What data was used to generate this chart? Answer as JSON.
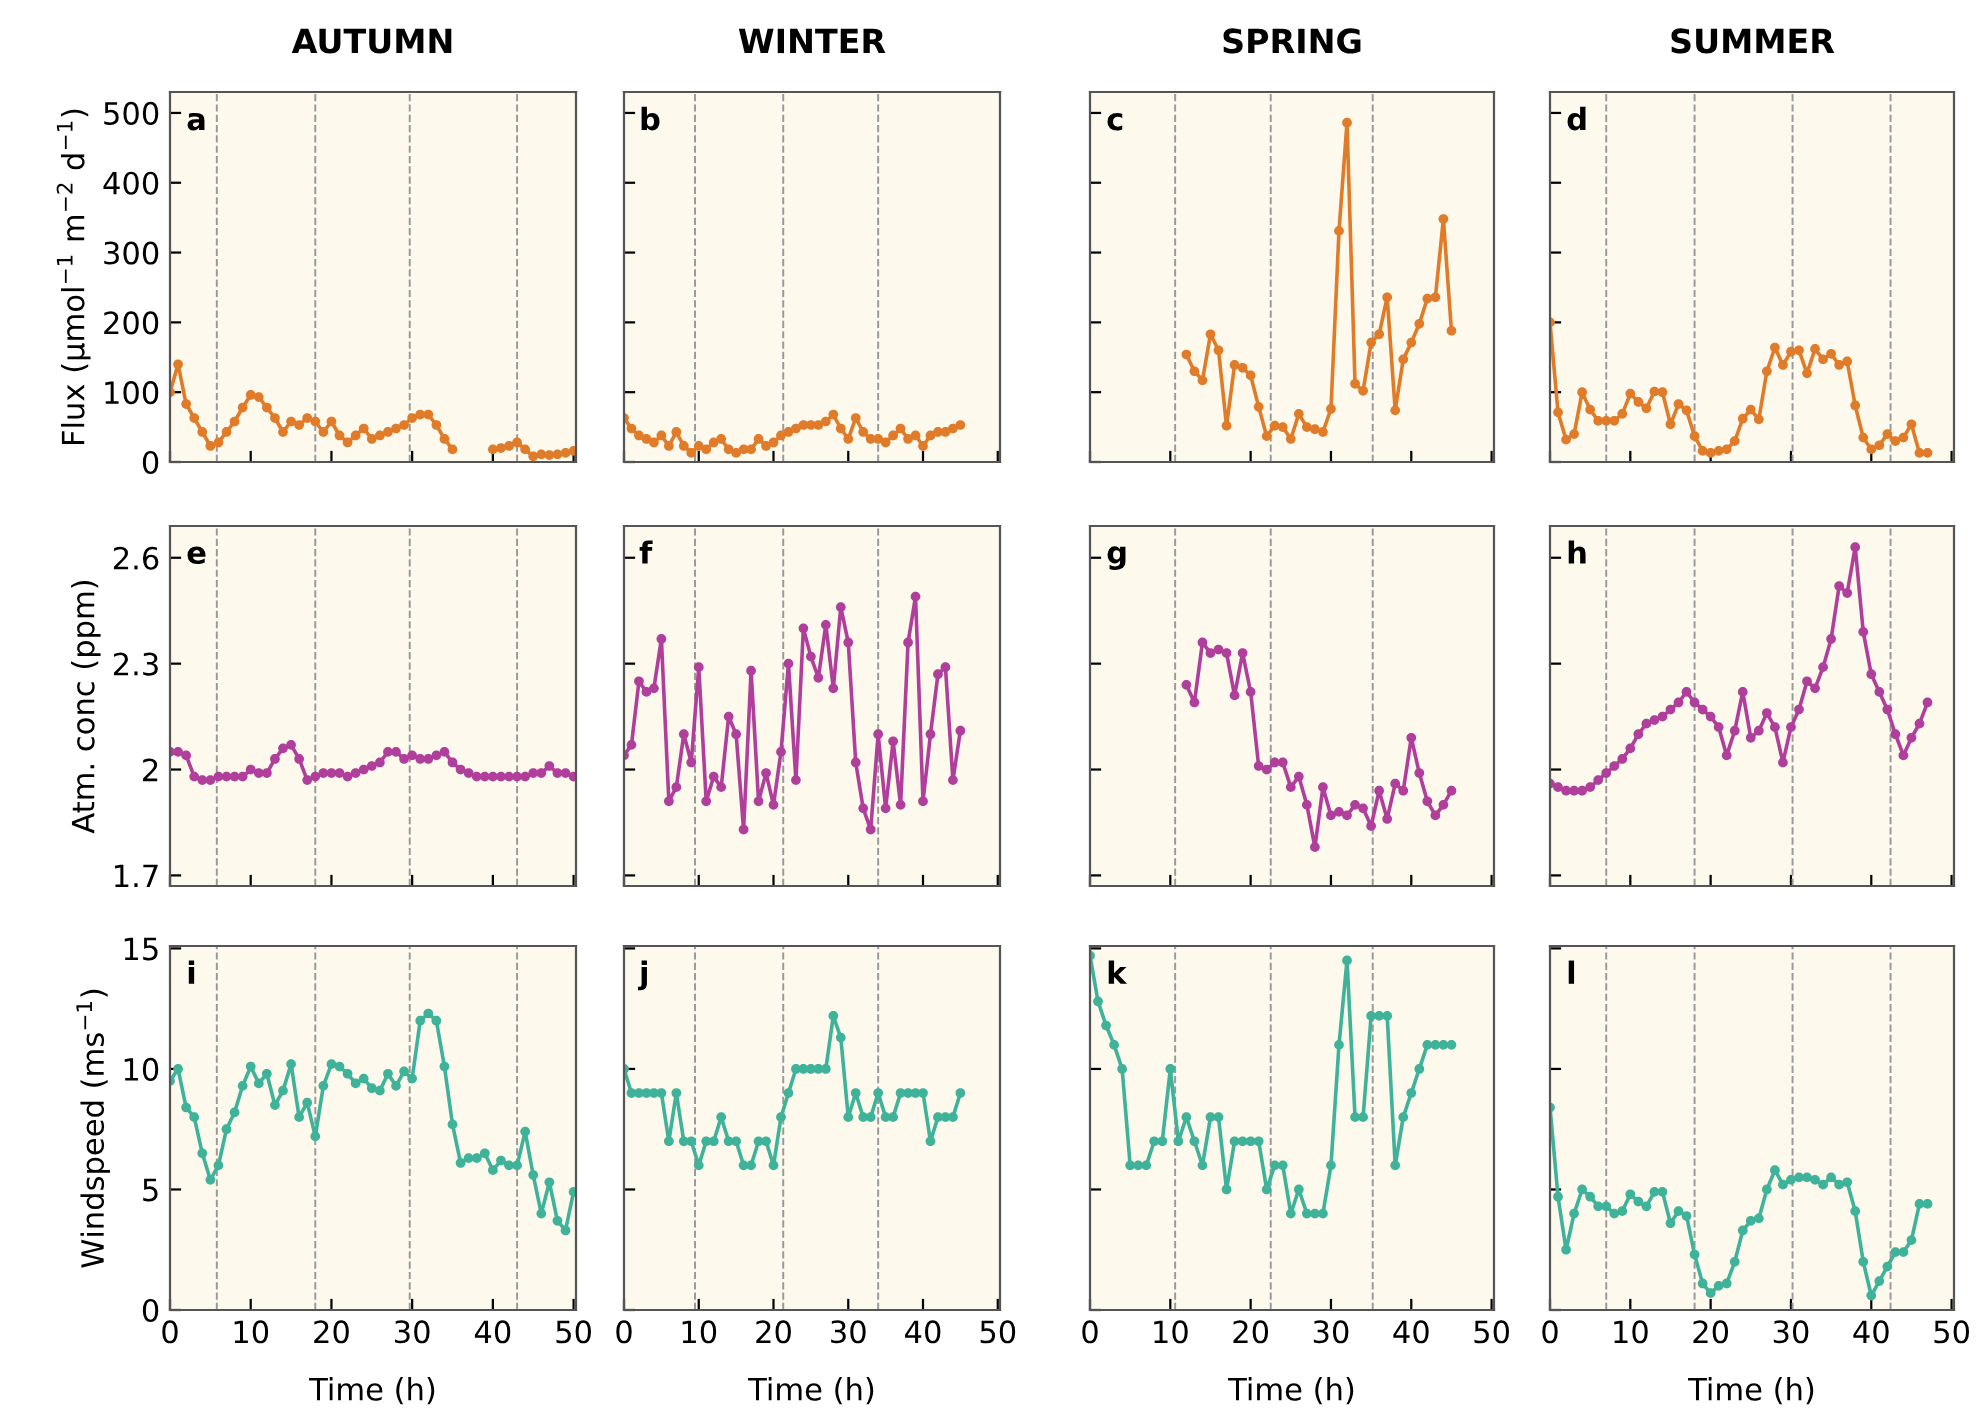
{
  "chart_data": [
    {
      "type": "line",
      "title": "AUTUMN",
      "ylabel": "Flux (µmol$^{−1}$ m$^{−2}$ d$^{−1}$)",
      "annotations": [
        "a"
      ],
      "color": "#e07b2a",
      "marker": "circle",
      "line_style": "solid",
      "tick_labels": "y",
      "xlim": [
        0,
        50.3
      ],
      "ylim": [
        0,
        530
      ],
      "xticks": [
        0,
        10,
        20,
        30,
        40,
        50
      ],
      "yticks": [
        0,
        100,
        200,
        300,
        400,
        500
      ],
      "ref_lines": [
        {
          "axis": "x",
          "value": 5.8,
          "color": "#999999",
          "line_style": "dashed"
        },
        {
          "axis": "x",
          "value": 18,
          "color": "#999999",
          "line_style": "dashed"
        },
        {
          "axis": "x",
          "value": 29.7,
          "color": "#999999",
          "line_style": "dashed"
        },
        {
          "axis": "x",
          "value": 43,
          "color": "#999999",
          "line_style": "dashed"
        }
      ],
      "x": [
        0,
        1,
        2,
        3,
        4,
        5,
        6,
        7,
        8,
        9,
        10,
        11,
        12,
        13,
        14,
        15,
        16,
        17,
        18,
        19,
        20,
        21,
        22,
        23,
        24,
        25,
        26,
        27,
        28,
        29,
        30,
        31,
        32,
        33,
        34,
        35,
        36,
        37,
        38,
        39,
        40,
        41,
        42,
        43,
        44,
        45,
        46,
        47,
        48,
        49,
        50
      ],
      "values": [
        100,
        140,
        83,
        63,
        43,
        23,
        28,
        43,
        58,
        78,
        96,
        93,
        78,
        63,
        43,
        58,
        53,
        63,
        58,
        43,
        58,
        38,
        28,
        38,
        48,
        33,
        38,
        43,
        48,
        53,
        63,
        68,
        68,
        53,
        33,
        18,
        null,
        null,
        null,
        null,
        18,
        20,
        23,
        28,
        18,
        8,
        11,
        10,
        11,
        13,
        16
      ]
    },
    {
      "type": "line",
      "title": "WINTER",
      "annotations": [
        "b"
      ],
      "color": "#e07b2a",
      "marker": "circle",
      "line_style": "solid",
      "tick_labels": false,
      "xlim": [
        0,
        50.3
      ],
      "ylim": [
        0,
        530
      ],
      "xticks": [
        0,
        10,
        20,
        30,
        40,
        50
      ],
      "yticks": [
        0,
        100,
        200,
        300,
        400,
        500
      ],
      "ref_lines": [
        {
          "axis": "x",
          "value": 9.5,
          "color": "#999999",
          "line_style": "dashed"
        },
        {
          "axis": "x",
          "value": 21.3,
          "color": "#999999",
          "line_style": "dashed"
        },
        {
          "axis": "x",
          "value": 34,
          "color": "#999999",
          "line_style": "dashed"
        }
      ],
      "x": [
        0,
        1,
        2,
        3,
        4,
        5,
        6,
        7,
        8,
        9,
        10,
        11,
        12,
        13,
        14,
        15,
        16,
        17,
        18,
        19,
        20,
        21,
        22,
        23,
        24,
        25,
        26,
        27,
        28,
        29,
        30,
        31,
        32,
        33,
        34,
        35,
        36,
        37,
        38,
        39,
        40,
        41,
        42,
        43,
        44,
        45
      ],
      "values": [
        63,
        48,
        38,
        33,
        28,
        38,
        23,
        43,
        23,
        13,
        23,
        18,
        28,
        33,
        18,
        13,
        18,
        18,
        33,
        23,
        28,
        38,
        43,
        48,
        53,
        53,
        53,
        58,
        68,
        48,
        33,
        63,
        43,
        33,
        33,
        28,
        38,
        48,
        33,
        38,
        23,
        38,
        43,
        43,
        48,
        53
      ]
    },
    {
      "type": "line",
      "title": "SPRING",
      "annotations": [
        "c"
      ],
      "color": "#e07b2a",
      "marker": "circle",
      "line_style": "solid",
      "tick_labels": false,
      "xlim": [
        0,
        50.3
      ],
      "ylim": [
        0,
        530
      ],
      "xticks": [
        0,
        10,
        20,
        30,
        40,
        50
      ],
      "yticks": [
        0,
        100,
        200,
        300,
        400,
        500
      ],
      "ref_lines": [
        {
          "axis": "x",
          "value": 10.6,
          "color": "#999999",
          "line_style": "dashed"
        },
        {
          "axis": "x",
          "value": 22.5,
          "color": "#999999",
          "line_style": "dashed"
        },
        {
          "axis": "x",
          "value": 35.2,
          "color": "#999999",
          "line_style": "dashed"
        }
      ],
      "x": [
        12,
        13,
        14,
        15,
        16,
        17,
        18,
        19,
        20,
        21,
        22,
        23,
        24,
        25,
        26,
        27,
        28,
        29,
        30,
        31,
        32,
        33,
        34,
        35,
        36,
        37,
        38,
        39,
        40,
        41,
        42,
        43,
        44,
        45
      ],
      "values": [
        154,
        130,
        117,
        183,
        160,
        52,
        139,
        135,
        124,
        79,
        37,
        52,
        50,
        33,
        69,
        50,
        47,
        43,
        76,
        331,
        486,
        112,
        102,
        171,
        183,
        236,
        74,
        147,
        171,
        198,
        234,
        236,
        348,
        188
      ]
    },
    {
      "type": "line",
      "title": "SUMMER",
      "annotations": [
        "d"
      ],
      "color": "#e07b2a",
      "marker": "circle",
      "line_style": "solid",
      "tick_labels": false,
      "xlim": [
        0,
        50.3
      ],
      "ylim": [
        0,
        530
      ],
      "xticks": [
        0,
        10,
        20,
        30,
        40,
        50
      ],
      "yticks": [
        0,
        100,
        200,
        300,
        400,
        500
      ],
      "ref_lines": [
        {
          "axis": "x",
          "value": 7,
          "color": "#999999",
          "line_style": "dashed"
        },
        {
          "axis": "x",
          "value": 18,
          "color": "#999999",
          "line_style": "dashed"
        },
        {
          "axis": "x",
          "value": 30.2,
          "color": "#999999",
          "line_style": "dashed"
        },
        {
          "axis": "x",
          "value": 42.4,
          "color": "#999999",
          "line_style": "dashed"
        }
      ],
      "x": [
        0,
        1,
        2,
        3,
        4,
        5,
        6,
        7,
        8,
        9,
        10,
        11,
        12,
        13,
        14,
        15,
        16,
        17,
        18,
        19,
        20,
        21,
        22,
        23,
        24,
        25,
        26,
        27,
        28,
        29,
        30,
        31,
        32,
        33,
        34,
        35,
        36,
        37,
        38,
        39,
        40,
        41,
        42,
        43,
        44,
        45,
        46,
        47
      ],
      "values": [
        200,
        71,
        32,
        40,
        100,
        75,
        59,
        59,
        59,
        69,
        98,
        86,
        77,
        101,
        100,
        54,
        83,
        74,
        37,
        16,
        13,
        16,
        18,
        30,
        62,
        75,
        61,
        130,
        164,
        139,
        158,
        160,
        127,
        162,
        147,
        155,
        139,
        144,
        81,
        35,
        18,
        24,
        40,
        30,
        35,
        54,
        13,
        13
      ]
    },
    {
      "type": "line",
      "ylabel": "Atm. conc (ppm)",
      "annotations": [
        "e"
      ],
      "color": "#b03f9c",
      "marker": "circle",
      "line_style": "solid",
      "tick_labels": "y",
      "xlim": [
        0,
        50.3
      ],
      "ylim": [
        1.67,
        2.69
      ],
      "xticks": [
        0,
        10,
        20,
        30,
        40,
        50
      ],
      "yticks": [
        1.7,
        2,
        2.3,
        2.6
      ],
      "ref_lines": [
        {
          "axis": "x",
          "value": 5.8,
          "color": "#999999",
          "line_style": "dashed"
        },
        {
          "axis": "x",
          "value": 18,
          "color": "#999999",
          "line_style": "dashed"
        },
        {
          "axis": "x",
          "value": 29.7,
          "color": "#999999",
          "line_style": "dashed"
        },
        {
          "axis": "x",
          "value": 43,
          "color": "#999999",
          "line_style": "dashed"
        }
      ],
      "x": [
        0,
        1,
        2,
        3,
        4,
        5,
        6,
        7,
        8,
        9,
        10,
        11,
        12,
        13,
        14,
        15,
        16,
        17,
        18,
        19,
        20,
        21,
        22,
        23,
        24,
        25,
        26,
        27,
        28,
        29,
        30,
        31,
        32,
        33,
        34,
        35,
        36,
        37,
        38,
        39,
        40,
        41,
        42,
        43,
        44,
        45,
        46,
        47,
        48,
        49,
        50
      ],
      "values": [
        2.05,
        2.05,
        2.04,
        1.98,
        1.97,
        1.97,
        1.98,
        1.98,
        1.98,
        1.98,
        2.0,
        1.99,
        1.99,
        2.03,
        2.06,
        2.07,
        2.03,
        1.97,
        1.98,
        1.99,
        1.99,
        1.99,
        1.98,
        1.99,
        2.0,
        2.01,
        2.02,
        2.05,
        2.05,
        2.03,
        2.04,
        2.03,
        2.03,
        2.04,
        2.05,
        2.02,
        2.0,
        1.99,
        1.98,
        1.98,
        1.98,
        1.98,
        1.98,
        1.98,
        1.98,
        1.99,
        1.99,
        2.01,
        1.99,
        1.99,
        1.98
      ]
    },
    {
      "type": "line",
      "annotations": [
        "f"
      ],
      "color": "#b03f9c",
      "marker": "circle",
      "line_style": "solid",
      "tick_labels": false,
      "xlim": [
        0,
        50.3
      ],
      "ylim": [
        1.67,
        2.69
      ],
      "xticks": [
        0,
        10,
        20,
        30,
        40,
        50
      ],
      "yticks": [
        1.7,
        2,
        2.3,
        2.6
      ],
      "ref_lines": [
        {
          "axis": "x",
          "value": 9.5,
          "color": "#999999",
          "line_style": "dashed"
        },
        {
          "axis": "x",
          "value": 21.3,
          "color": "#999999",
          "line_style": "dashed"
        },
        {
          "axis": "x",
          "value": 34,
          "color": "#999999",
          "line_style": "dashed"
        }
      ],
      "x": [
        0,
        1,
        2,
        3,
        4,
        5,
        6,
        7,
        8,
        9,
        10,
        11,
        12,
        13,
        14,
        15,
        16,
        17,
        18,
        19,
        20,
        21,
        22,
        23,
        24,
        25,
        26,
        27,
        28,
        29,
        30,
        31,
        32,
        33,
        34,
        35,
        36,
        37,
        38,
        39,
        40,
        41,
        42,
        43,
        44,
        45
      ],
      "values": [
        2.04,
        2.07,
        2.25,
        2.22,
        2.23,
        2.37,
        1.91,
        1.95,
        2.1,
        2.02,
        2.29,
        1.91,
        1.98,
        1.95,
        2.15,
        2.1,
        1.83,
        2.28,
        1.91,
        1.99,
        1.9,
        2.05,
        2.3,
        1.97,
        2.4,
        2.32,
        2.26,
        2.41,
        2.23,
        2.46,
        2.36,
        2.02,
        1.89,
        1.83,
        2.1,
        1.89,
        2.08,
        1.9,
        2.36,
        2.49,
        1.91,
        2.1,
        2.27,
        2.29,
        1.97,
        2.11
      ]
    },
    {
      "type": "line",
      "annotations": [
        "g"
      ],
      "color": "#b03f9c",
      "marker": "circle",
      "line_style": "solid",
      "tick_labels": false,
      "xlim": [
        0,
        50.3
      ],
      "ylim": [
        1.67,
        2.69
      ],
      "xticks": [
        0,
        10,
        20,
        30,
        40,
        50
      ],
      "yticks": [
        1.7,
        2,
        2.3,
        2.6
      ],
      "ref_lines": [
        {
          "axis": "x",
          "value": 10.6,
          "color": "#999999",
          "line_style": "dashed"
        },
        {
          "axis": "x",
          "value": 22.5,
          "color": "#999999",
          "line_style": "dashed"
        },
        {
          "axis": "x",
          "value": 35.2,
          "color": "#999999",
          "line_style": "dashed"
        }
      ],
      "x": [
        12,
        13,
        14,
        15,
        16,
        17,
        18,
        19,
        20,
        21,
        22,
        23,
        24,
        25,
        26,
        27,
        28,
        29,
        30,
        31,
        32,
        33,
        34,
        35,
        36,
        37,
        38,
        39,
        40,
        41,
        42,
        43,
        44,
        45
      ],
      "values": [
        2.24,
        2.19,
        2.36,
        2.33,
        2.34,
        2.33,
        2.21,
        2.33,
        2.22,
        2.01,
        2.0,
        2.02,
        2.02,
        1.95,
        1.98,
        1.9,
        1.78,
        1.95,
        1.87,
        1.88,
        1.87,
        1.9,
        1.89,
        1.84,
        1.94,
        1.86,
        1.96,
        1.94,
        2.09,
        1.99,
        1.91,
        1.87,
        1.9,
        1.94
      ]
    },
    {
      "type": "line",
      "annotations": [
        "h"
      ],
      "color": "#b03f9c",
      "marker": "circle",
      "line_style": "solid",
      "tick_labels": false,
      "xlim": [
        0,
        50.3
      ],
      "ylim": [
        1.67,
        2.69
      ],
      "xticks": [
        0,
        10,
        20,
        30,
        40,
        50
      ],
      "yticks": [
        1.7,
        2,
        2.3,
        2.6
      ],
      "ref_lines": [
        {
          "axis": "x",
          "value": 7,
          "color": "#999999",
          "line_style": "dashed"
        },
        {
          "axis": "x",
          "value": 18,
          "color": "#999999",
          "line_style": "dashed"
        },
        {
          "axis": "x",
          "value": 30.2,
          "color": "#999999",
          "line_style": "dashed"
        },
        {
          "axis": "x",
          "value": 42.4,
          "color": "#999999",
          "line_style": "dashed"
        }
      ],
      "x": [
        0,
        1,
        2,
        3,
        4,
        5,
        6,
        7,
        8,
        9,
        10,
        11,
        12,
        13,
        14,
        15,
        16,
        17,
        18,
        19,
        20,
        21,
        22,
        23,
        24,
        25,
        26,
        27,
        28,
        29,
        30,
        31,
        32,
        33,
        34,
        35,
        36,
        37,
        38,
        39,
        40,
        41,
        42,
        43,
        44,
        45,
        46,
        47
      ],
      "values": [
        1.96,
        1.95,
        1.94,
        1.94,
        1.94,
        1.95,
        1.97,
        1.99,
        2.01,
        2.03,
        2.06,
        2.1,
        2.13,
        2.14,
        2.15,
        2.17,
        2.19,
        2.22,
        2.19,
        2.17,
        2.15,
        2.12,
        2.04,
        2.11,
        2.22,
        2.09,
        2.11,
        2.16,
        2.12,
        2.02,
        2.12,
        2.17,
        2.25,
        2.23,
        2.29,
        2.37,
        2.52,
        2.5,
        2.63,
        2.39,
        2.27,
        2.22,
        2.17,
        2.1,
        2.04,
        2.09,
        2.13,
        2.19
      ]
    },
    {
      "type": "line",
      "ylabel": "Windspeed (ms$^{−1}$)",
      "xlabel": "Time (h)",
      "annotations": [
        "i"
      ],
      "color": "#3fb39a",
      "marker": "circle",
      "line_style": "solid",
      "xlim": [
        0,
        50.3
      ],
      "ylim": [
        0,
        15.1
      ],
      "xticks": [
        0,
        10,
        20,
        30,
        40,
        50
      ],
      "yticks": [
        0,
        5,
        10,
        15
      ],
      "ref_lines": [
        {
          "axis": "x",
          "value": 5.8,
          "color": "#999999",
          "line_style": "dashed"
        },
        {
          "axis": "x",
          "value": 18,
          "color": "#999999",
          "line_style": "dashed"
        },
        {
          "axis": "x",
          "value": 29.7,
          "color": "#999999",
          "line_style": "dashed"
        },
        {
          "axis": "x",
          "value": 43,
          "color": "#999999",
          "line_style": "dashed"
        }
      ],
      "x": [
        0,
        1,
        2,
        3,
        4,
        5,
        6,
        7,
        8,
        9,
        10,
        11,
        12,
        13,
        14,
        15,
        16,
        17,
        18,
        19,
        20,
        21,
        22,
        23,
        24,
        25,
        26,
        27,
        28,
        29,
        30,
        31,
        32,
        33,
        34,
        35,
        36,
        37,
        38,
        39,
        40,
        41,
        42,
        43,
        44,
        45,
        46,
        47,
        48,
        49,
        50
      ],
      "values": [
        9.5,
        10,
        8.4,
        8.0,
        6.5,
        5.4,
        6.0,
        7.5,
        8.2,
        9.3,
        10.1,
        9.4,
        9.8,
        8.5,
        9.1,
        10.2,
        8.0,
        8.6,
        7.2,
        9.3,
        10.2,
        10.1,
        9.8,
        9.4,
        9.6,
        9.2,
        9.1,
        9.8,
        9.3,
        9.9,
        9.6,
        12.0,
        12.3,
        12.0,
        10.1,
        7.7,
        6.1,
        6.3,
        6.3,
        6.5,
        5.8,
        6.2,
        6.0,
        6.0,
        7.4,
        5.6,
        4.0,
        5.3,
        3.7,
        3.3,
        4.9
      ]
    },
    {
      "type": "line",
      "xlabel": "Time (h)",
      "annotations": [
        "j"
      ],
      "color": "#3fb39a",
      "marker": "circle",
      "line_style": "solid",
      "tick_labels": "x",
      "xlim": [
        0,
        50.3
      ],
      "ylim": [
        0,
        15.1
      ],
      "xticks": [
        0,
        10,
        20,
        30,
        40,
        50
      ],
      "yticks": [
        0,
        5,
        10,
        15
      ],
      "ref_lines": [
        {
          "axis": "x",
          "value": 9.5,
          "color": "#999999",
          "line_style": "dashed"
        },
        {
          "axis": "x",
          "value": 21.3,
          "color": "#999999",
          "line_style": "dashed"
        },
        {
          "axis": "x",
          "value": 34,
          "color": "#999999",
          "line_style": "dashed"
        }
      ],
      "x": [
        0,
        1,
        2,
        3,
        4,
        5,
        6,
        7,
        8,
        9,
        10,
        11,
        12,
        13,
        14,
        15,
        16,
        17,
        18,
        19,
        20,
        21,
        22,
        23,
        24,
        25,
        26,
        27,
        28,
        29,
        30,
        31,
        32,
        33,
        34,
        35,
        36,
        37,
        38,
        39,
        40,
        41,
        42,
        43,
        44,
        45
      ],
      "values": [
        10,
        9,
        9,
        9,
        9,
        9,
        7,
        9,
        7,
        7,
        6,
        7,
        7,
        8,
        7,
        7,
        6,
        6,
        7,
        7,
        6,
        8,
        9,
        10,
        10,
        10,
        10,
        10,
        12.2,
        11.3,
        8,
        9,
        8,
        8,
        9,
        8,
        8,
        9,
        9,
        9,
        9,
        7,
        8,
        8,
        8,
        9
      ]
    },
    {
      "type": "line",
      "xlabel": "Time (h)",
      "annotations": [
        "k"
      ],
      "color": "#3fb39a",
      "marker": "circle",
      "line_style": "solid",
      "tick_labels": "x",
      "xlim": [
        0,
        50.3
      ],
      "ylim": [
        0,
        15.1
      ],
      "xticks": [
        0,
        10,
        20,
        30,
        40,
        50
      ],
      "yticks": [
        0,
        5,
        10,
        15
      ],
      "ref_lines": [
        {
          "axis": "x",
          "value": 10.6,
          "color": "#999999",
          "line_style": "dashed"
        },
        {
          "axis": "x",
          "value": 22.5,
          "color": "#999999",
          "line_style": "dashed"
        },
        {
          "axis": "x",
          "value": 35.2,
          "color": "#999999",
          "line_style": "dashed"
        }
      ],
      "x": [
        0,
        1,
        2,
        3,
        4,
        5,
        6,
        7,
        8,
        9,
        10,
        11,
        12,
        13,
        14,
        15,
        16,
        17,
        18,
        19,
        20,
        21,
        22,
        23,
        24,
        25,
        26,
        27,
        28,
        29,
        30,
        31,
        32,
        33,
        34,
        35,
        36,
        37,
        38,
        39,
        40,
        41,
        42,
        43,
        44,
        45
      ],
      "values": [
        14.7,
        12.8,
        11.8,
        11,
        10,
        6,
        6,
        6,
        7,
        7,
        10,
        7,
        8,
        7,
        6,
        8,
        8,
        5,
        7,
        7,
        7,
        7,
        5,
        6,
        6,
        4,
        5,
        4,
        4,
        4,
        6,
        11,
        14.5,
        8,
        8,
        12.2,
        12.2,
        12.2,
        6,
        8,
        9,
        10,
        11,
        11,
        11,
        11
      ]
    },
    {
      "type": "line",
      "xlabel": "Time (h)",
      "annotations": [
        "l"
      ],
      "color": "#3fb39a",
      "marker": "circle",
      "line_style": "solid",
      "tick_labels": "x",
      "xlim": [
        0,
        50.3
      ],
      "ylim": [
        0,
        15.1
      ],
      "xticks": [
        0,
        10,
        20,
        30,
        40,
        50
      ],
      "yticks": [
        0,
        5,
        10,
        15
      ],
      "ref_lines": [
        {
          "axis": "x",
          "value": 7,
          "color": "#999999",
          "line_style": "dashed"
        },
        {
          "axis": "x",
          "value": 18,
          "color": "#999999",
          "line_style": "dashed"
        },
        {
          "axis": "x",
          "value": 30.2,
          "color": "#999999",
          "line_style": "dashed"
        },
        {
          "axis": "x",
          "value": 42.4,
          "color": "#999999",
          "line_style": "dashed"
        }
      ],
      "x": [
        0,
        1,
        2,
        3,
        4,
        5,
        6,
        7,
        8,
        9,
        10,
        11,
        12,
        13,
        14,
        15,
        16,
        17,
        18,
        19,
        20,
        21,
        22,
        23,
        24,
        25,
        26,
        27,
        28,
        29,
        30,
        31,
        32,
        33,
        34,
        35,
        36,
        37,
        38,
        39,
        40,
        41,
        42,
        43,
        44,
        45,
        46,
        47
      ],
      "values": [
        8.4,
        4.7,
        2.5,
        4.0,
        5.0,
        4.7,
        4.3,
        4.3,
        4.0,
        4.1,
        4.8,
        4.5,
        4.3,
        4.9,
        4.9,
        3.6,
        4.1,
        3.9,
        2.3,
        1.1,
        0.7,
        1.0,
        1.1,
        2.0,
        3.3,
        3.7,
        3.8,
        5.0,
        5.8,
        5.2,
        5.4,
        5.5,
        5.5,
        5.4,
        5.2,
        5.5,
        5.2,
        5.3,
        4.1,
        2.0,
        0.6,
        1.2,
        1.8,
        2.4,
        2.4,
        2.9,
        4.4,
        4.4
      ]
    }
  ]
}
